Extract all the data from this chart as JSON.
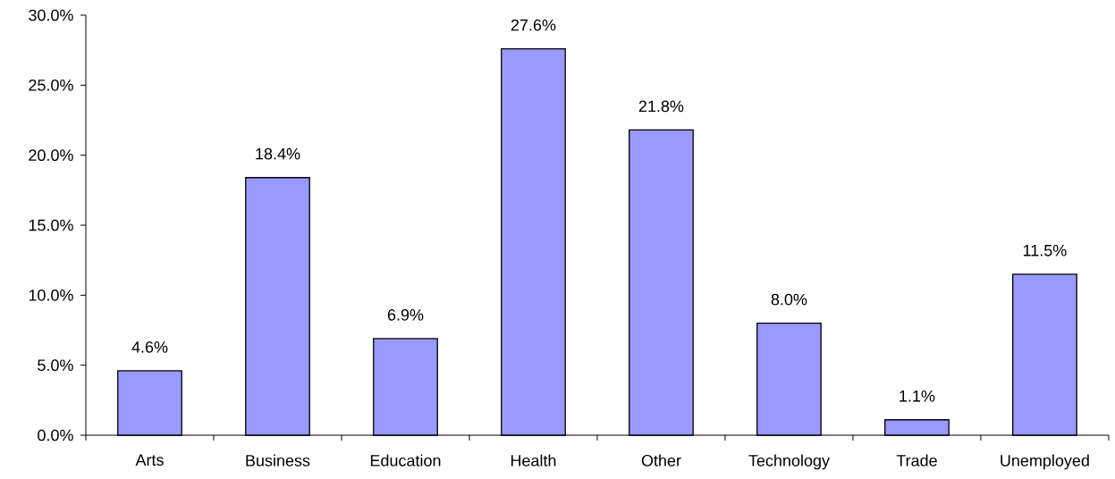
{
  "chart_data": {
    "type": "bar",
    "categories": [
      "Arts",
      "Business",
      "Education",
      "Health",
      "Other",
      "Technology",
      "Trade",
      "Unemployed"
    ],
    "values": [
      4.6,
      18.4,
      6.9,
      27.6,
      21.8,
      8.0,
      1.1,
      11.5
    ],
    "value_labels": [
      "4.6%",
      "18.4%",
      "6.9%",
      "27.6%",
      "21.8%",
      "8.0%",
      "1.1%",
      "11.5%"
    ],
    "color": "#9999ff",
    "ylim": [
      0,
      30
    ],
    "yticks": [
      {
        "value": 0,
        "label": "0.0%"
      },
      {
        "value": 5,
        "label": "5.0%"
      },
      {
        "value": 10,
        "label": "10.0%"
      },
      {
        "value": 15,
        "label": "15.0%"
      },
      {
        "value": 20,
        "label": "20.0%"
      },
      {
        "value": 25,
        "label": "25.0%"
      },
      {
        "value": 30,
        "label": "30.0%"
      }
    ],
    "grid": false,
    "legend": false
  }
}
